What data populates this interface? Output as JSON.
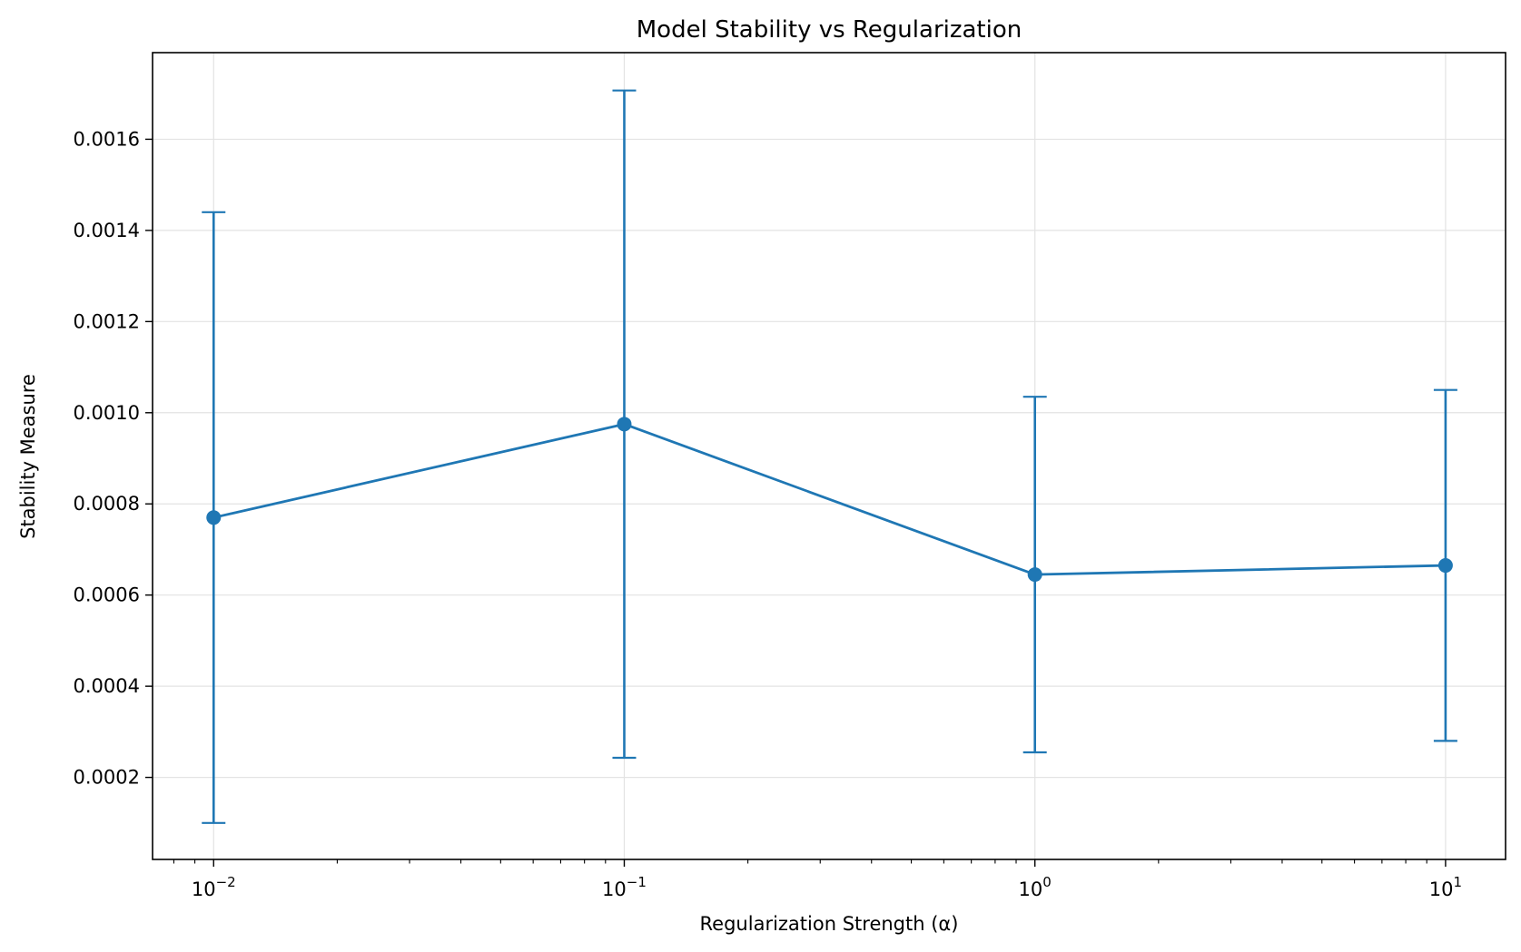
{
  "chart_data": {
    "type": "line",
    "title": "Model Stability vs Regularization",
    "xlabel": "Regularization Strength (α)",
    "ylabel": "Stability Measure",
    "xscale": "log",
    "xlim": [
      0.0071,
      14.0
    ],
    "ylim": [
      2e-05,
      0.00179
    ],
    "grid": true,
    "x_ticks": [
      {
        "value": 0.01,
        "base": "10",
        "exp": "−2"
      },
      {
        "value": 0.1,
        "base": "10",
        "exp": "−1"
      },
      {
        "value": 1,
        "base": "10",
        "exp": "0"
      },
      {
        "value": 10,
        "base": "10",
        "exp": "1"
      }
    ],
    "y_ticks": [
      0.0002,
      0.0004,
      0.0006,
      0.0008,
      0.001,
      0.0012,
      0.0014,
      0.0016
    ],
    "y_tick_labels": [
      "0.0002",
      "0.0004",
      "0.0006",
      "0.0008",
      "0.0010",
      "0.0012",
      "0.0014",
      "0.0016"
    ],
    "series": [
      {
        "color": "#1f77b4",
        "x": [
          0.01,
          0.1,
          1,
          10
        ],
        "y": [
          0.00077,
          0.000975,
          0.000645,
          0.000665
        ],
        "yerr": [
          0.00067,
          0.000732,
          0.00039,
          0.000385
        ]
      }
    ]
  }
}
